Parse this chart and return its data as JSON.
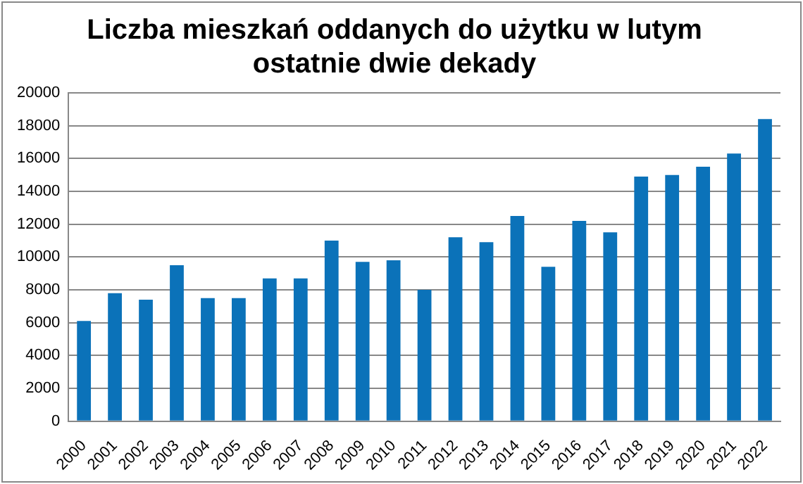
{
  "chart_data": {
    "type": "bar",
    "title": [
      "Liczba mieszkań oddanych do użytku w lutym",
      "ostatnie dwie dekady"
    ],
    "categories": [
      "2000",
      "2001",
      "2002",
      "2003",
      "2004",
      "2005",
      "2006",
      "2007",
      "2008",
      "2009",
      "2010",
      "2011",
      "2012",
      "2013",
      "2014",
      "2015",
      "2016",
      "2017",
      "2018",
      "2019",
      "2020",
      "2021",
      "2022"
    ],
    "values": [
      6100,
      7800,
      7400,
      9500,
      7500,
      7500,
      8700,
      8700,
      11000,
      9700,
      9800,
      8000,
      11200,
      10900,
      12500,
      9400,
      12200,
      11500,
      14900,
      15000,
      15500,
      16300,
      18400
    ],
    "color": "#0b72b9",
    "ylim": [
      0,
      20000
    ],
    "yticks": [
      0,
      2000,
      4000,
      6000,
      8000,
      10000,
      12000,
      14000,
      16000,
      18000,
      20000
    ],
    "grid": "y",
    "legend": false
  }
}
